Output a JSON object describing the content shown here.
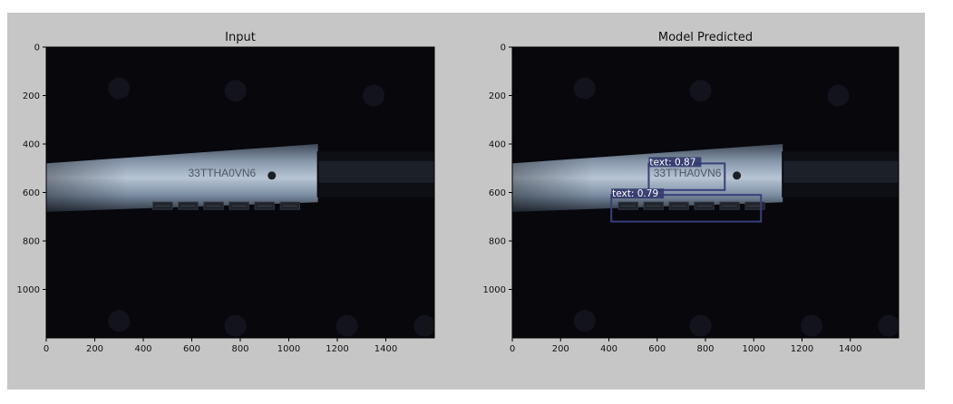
{
  "panels": [
    {
      "id": "input",
      "title": "Input",
      "image_text": "33TTHA0VN6",
      "detections": []
    },
    {
      "id": "predicted",
      "title": "Model Predicted",
      "image_text": "33TTHA0VN6",
      "detections": [
        {
          "label": "text: 0.87",
          "x0": 565,
          "y0": 480,
          "x1": 880,
          "y1": 590
        },
        {
          "label": "text: 0.79",
          "x0": 410,
          "y0": 610,
          "x1": 1030,
          "y1": 720
        }
      ]
    }
  ],
  "axes": {
    "x_ticks": [
      0,
      200,
      400,
      600,
      800,
      1000,
      1200,
      1400
    ],
    "y_ticks": [
      0,
      200,
      400,
      600,
      800,
      1000
    ],
    "x_range": [
      0,
      1600
    ],
    "y_range": [
      1200,
      0
    ]
  },
  "colors": {
    "figure_bg": "#c6c6c6",
    "image_bg": "#07070c",
    "box": "#3a3f7a",
    "label_bg": "#333a6e"
  }
}
